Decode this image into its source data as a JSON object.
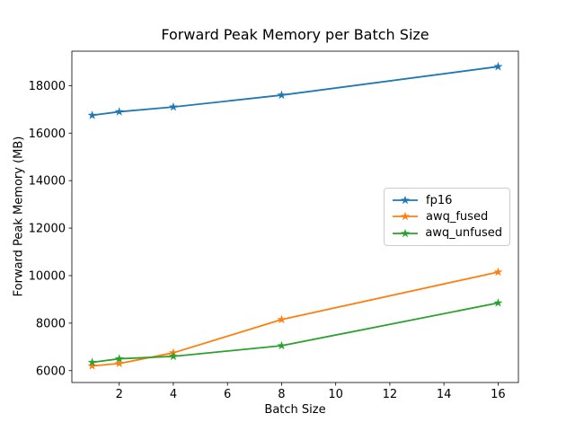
{
  "figure": {
    "background": "#ffffff"
  },
  "chart_data": {
    "type": "line",
    "title": "Forward Peak Memory per Batch Size",
    "xlabel": "Batch Size",
    "ylabel": "Forward Peak Memory (MB)",
    "x": [
      1,
      2,
      4,
      8,
      16
    ],
    "series": [
      {
        "name": "fp16",
        "color": "#1f77b4",
        "marker": "star",
        "values": [
          16750,
          16900,
          17100,
          17600,
          18800
        ]
      },
      {
        "name": "awq_fused",
        "color": "#ff7f0e",
        "marker": "star",
        "values": [
          6200,
          6300,
          6750,
          8150,
          10150
        ]
      },
      {
        "name": "awq_unfused",
        "color": "#2ca02c",
        "marker": "star",
        "values": [
          6350,
          6500,
          6600,
          7050,
          8850
        ]
      }
    ],
    "xticks": [
      2,
      4,
      6,
      8,
      10,
      12,
      14,
      16
    ],
    "yticks": [
      6000,
      8000,
      10000,
      12000,
      14000,
      16000,
      18000
    ],
    "xlim": [
      0.25,
      16.75
    ],
    "ylim": [
      5500,
      19450
    ],
    "grid": false,
    "legend_position": "center-right",
    "axis_color": "#000000"
  }
}
